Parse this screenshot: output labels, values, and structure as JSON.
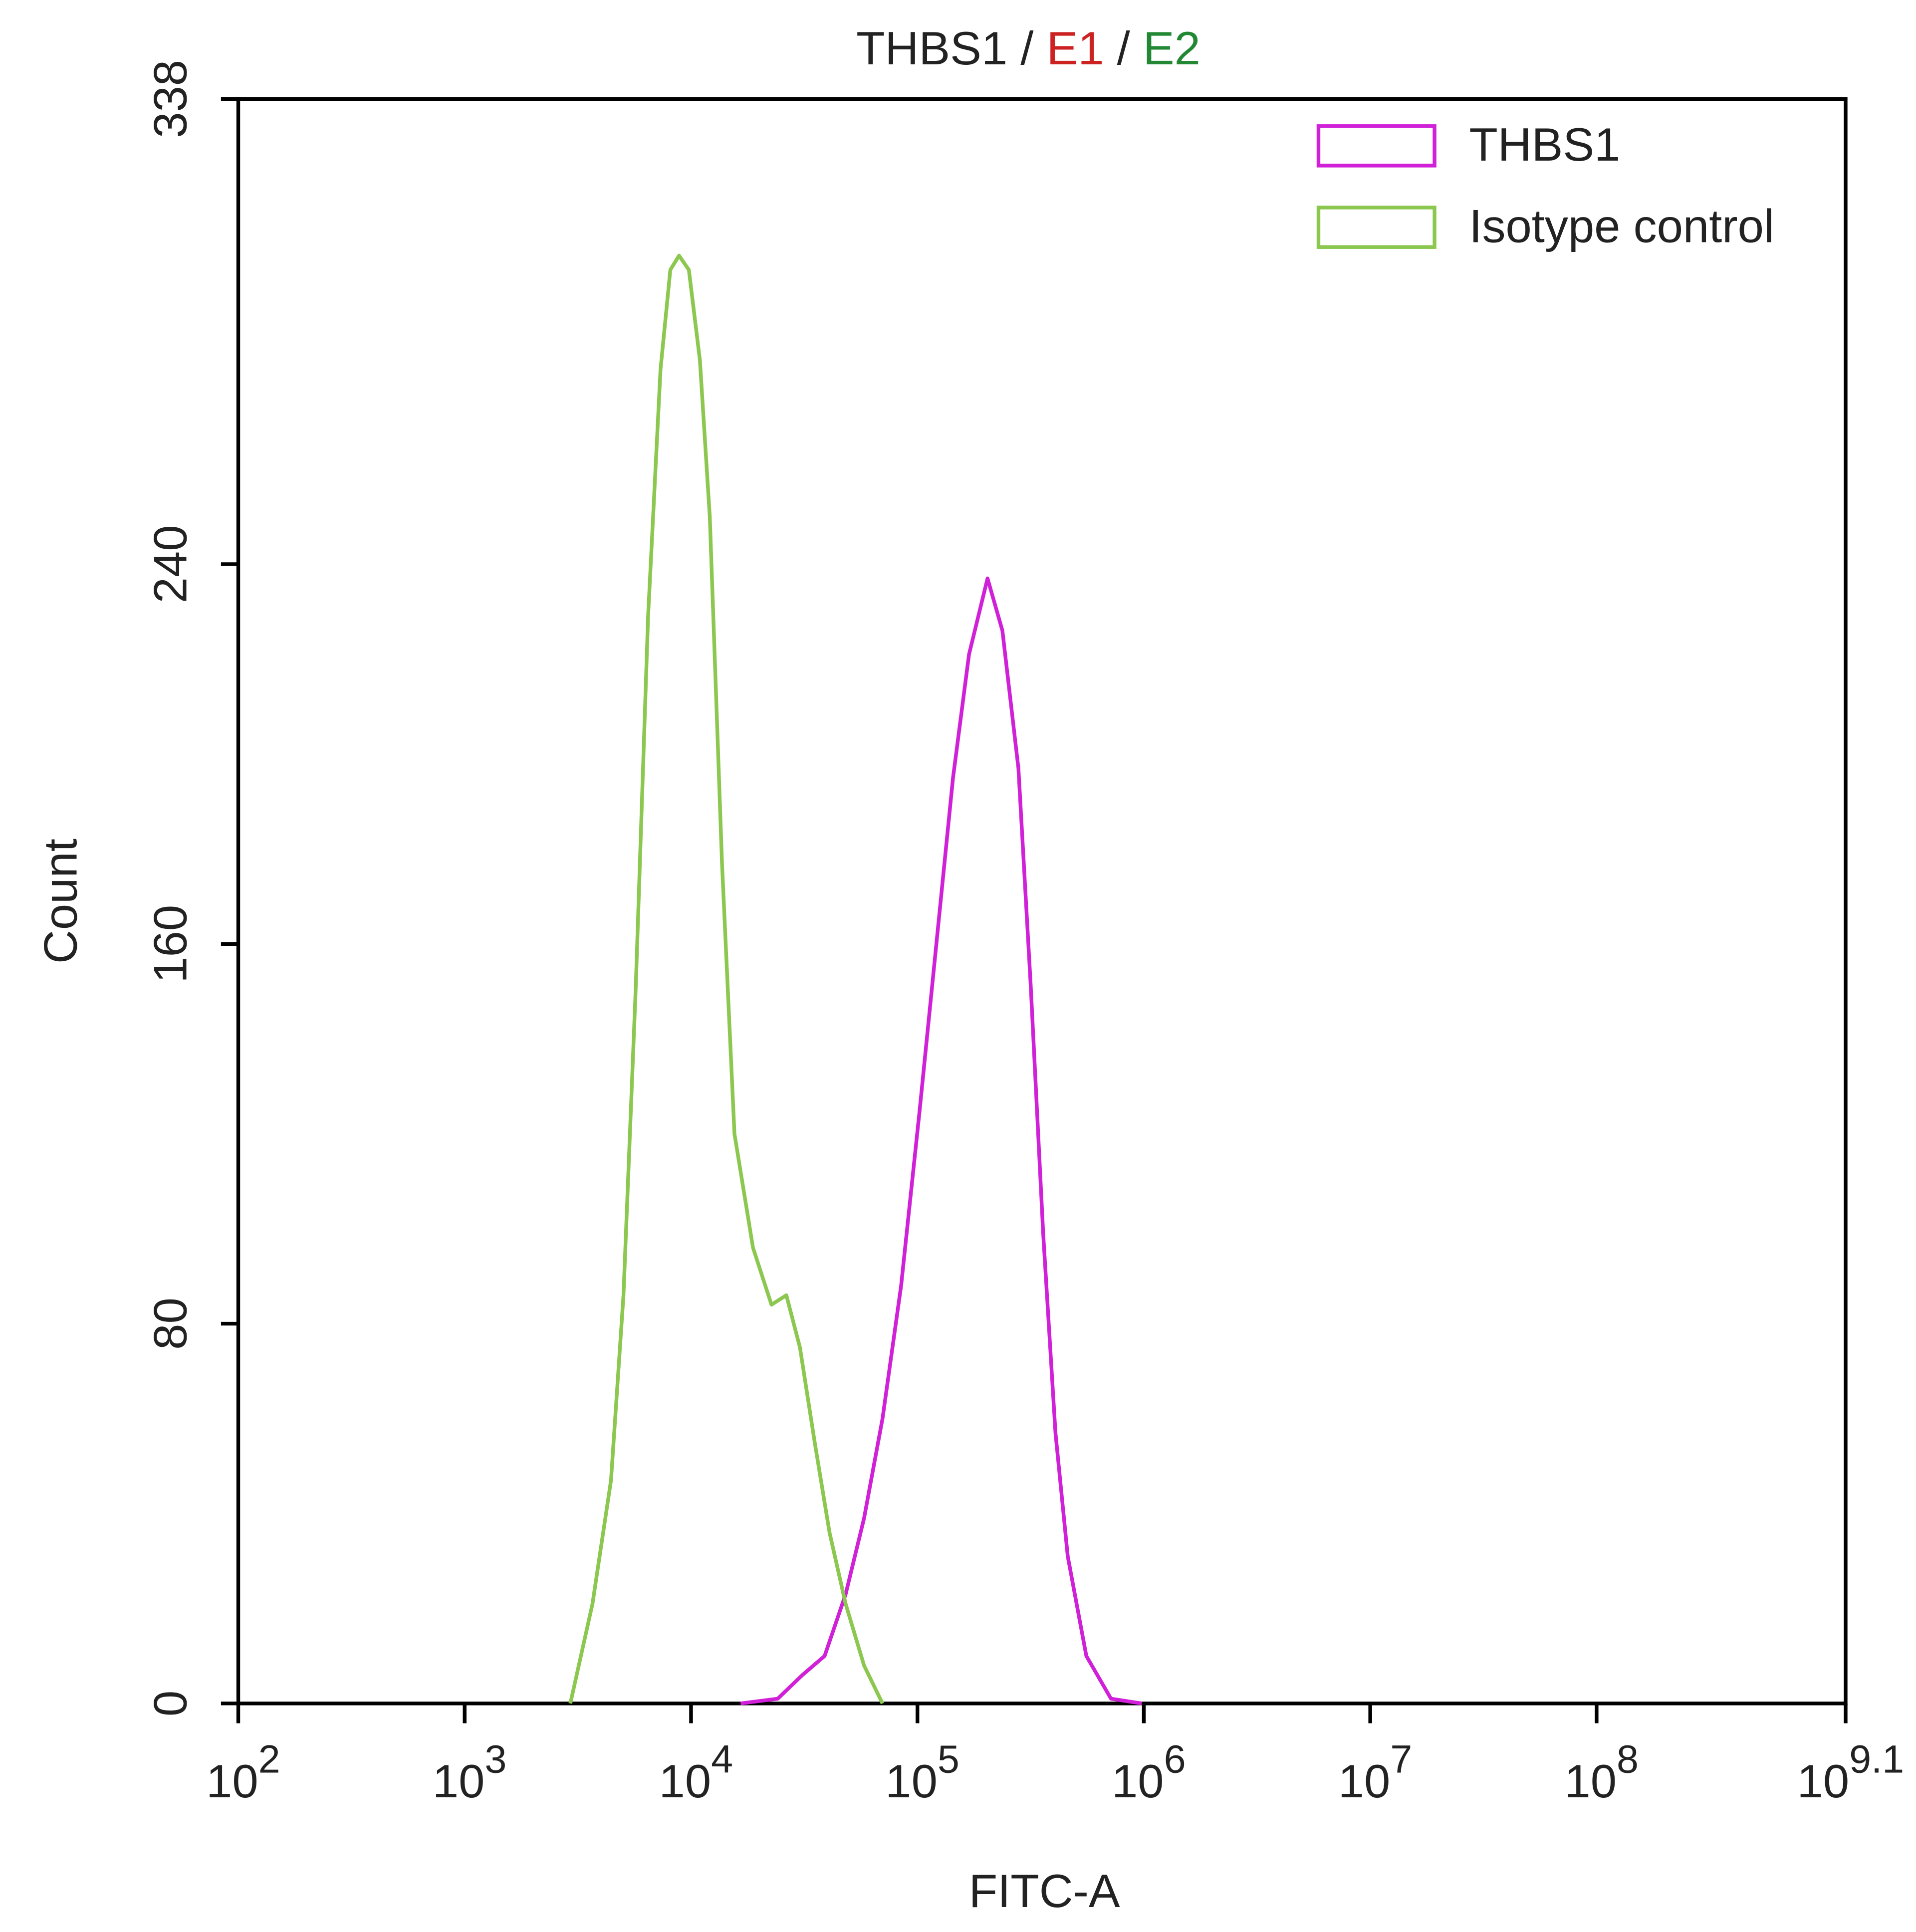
{
  "chart_data": {
    "type": "line",
    "title": [
      {
        "text": "THBS1",
        "color": "#222222"
      },
      {
        "text": "/",
        "color": "#222222"
      },
      {
        "text": "E1",
        "color": "#cc2222"
      },
      {
        "text": "/",
        "color": "#222222"
      },
      {
        "text": "E2",
        "color": "#228833"
      }
    ],
    "x_label": "FITC-A",
    "y_label": "Count",
    "log_x": true,
    "xlim": [
      100,
      1258925412
    ],
    "xticks": [
      {
        "value": 100,
        "label": "10",
        "exponent": "2"
      },
      {
        "value": 1000,
        "label": "10",
        "exponent": "3"
      },
      {
        "value": 10000,
        "label": "10",
        "exponent": "4"
      },
      {
        "value": 100000,
        "label": "10",
        "exponent": "5"
      },
      {
        "value": 1000000,
        "label": "10",
        "exponent": "6"
      },
      {
        "value": 10000000,
        "label": "10",
        "exponent": "7"
      },
      {
        "value": 100000000,
        "label": "10",
        "exponent": "8"
      },
      {
        "value": 1258925412,
        "label": "10",
        "exponent": "9.1"
      }
    ],
    "ylim": [
      0,
      338
    ],
    "yticks": [
      0,
      80,
      160,
      240,
      338
    ],
    "legend": "upper right",
    "series": [
      {
        "name": "THBS1",
        "color": "#d020d8",
        "x": [
          16560,
          24150,
          31050,
          38900,
          48170,
          58100,
          70100,
          84700,
          102300,
          123600,
          143600,
          169000,
          204000,
          237300,
          279300,
          316700,
          359300,
          407100,
          461300,
          557300,
          716100,
          979400
        ],
        "values": [
          0,
          1,
          6,
          10,
          23,
          39,
          60,
          88,
          125,
          164,
          195,
          221,
          237,
          226,
          197,
          151,
          99,
          57,
          31,
          10,
          1,
          0
        ]
      },
      {
        "name": "Isotype control",
        "color": "#8cc850",
        "x": [
          2930,
          3670,
          4430,
          5030,
          5700,
          6460,
          7330,
          8100,
          8850,
          9780,
          10940,
          12100,
          13700,
          15550,
          18780,
          22660,
          26360,
          30270,
          35180,
          40900,
          48170,
          58100,
          70100
        ],
        "values": [
          0,
          21,
          47,
          86,
          151,
          229,
          281,
          302,
          305,
          302,
          283,
          250,
          177,
          120,
          96,
          84,
          86,
          75,
          55,
          36,
          21,
          8,
          0
        ]
      }
    ]
  }
}
